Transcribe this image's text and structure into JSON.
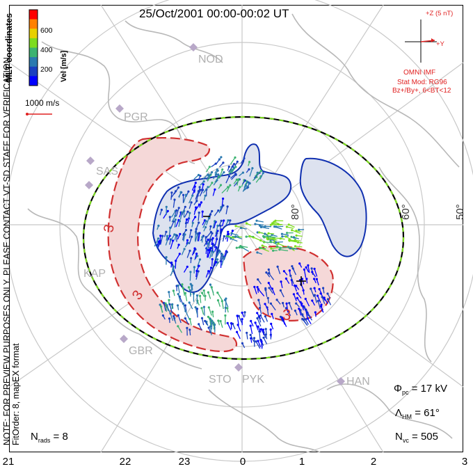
{
  "title": "25/Oct/2001  00:00-00:02  UT",
  "colorbar": {
    "label": "Vel [m/s]",
    "ticks": [
      "600",
      "400",
      "200"
    ],
    "colors": [
      "#ff0000",
      "#ff8000",
      "#e8d000",
      "#7ddc1f",
      "#3cb371",
      "#2a7ab0",
      "#1a40c0",
      "#0000ff"
    ]
  },
  "mlt_coordinates_label": "MLT coordinates",
  "scale_vector_label": "1000 m/s",
  "imf_panel": {
    "z_label": "+Z (5 nT)",
    "y_label": "+Y",
    "source": "OMNI IMF",
    "stat_mod": "Stat Mod: RG96",
    "condition": "Bz+/By+, 6<BT<12"
  },
  "latitude_labels": [
    "80°",
    "60°",
    "50°"
  ],
  "stations": [
    "NOD",
    "PGR",
    "SAS",
    "KAP",
    "GBR",
    "STO",
    "PYK",
    "HAN"
  ],
  "contour_labels": {
    "negative_min": "−",
    "positive_max": "+",
    "neg_value": "3",
    "pos_value": "3"
  },
  "note": "NOTE: FOR PREVIEW PURPOSES ONLY. PLEASE CONTACT VT-SD STAFF FOR VERIFICATION.",
  "fit_order": "FitOrder: 8, mapEX format",
  "stats": {
    "phi_pc": "17 kV",
    "lambda_hm": "61°",
    "n_vc": "505",
    "n_rads": "8"
  },
  "mlt_axis": [
    "21",
    "22",
    "23",
    "0",
    "1",
    "2",
    "3"
  ],
  "map_colors": {
    "positive_cell": "#f5d8d8",
    "negative_cell": "#dde2ef",
    "pos_contour": "#d03030",
    "neg_contour": "#1030b0",
    "boundary": "#7ddc1f"
  }
}
